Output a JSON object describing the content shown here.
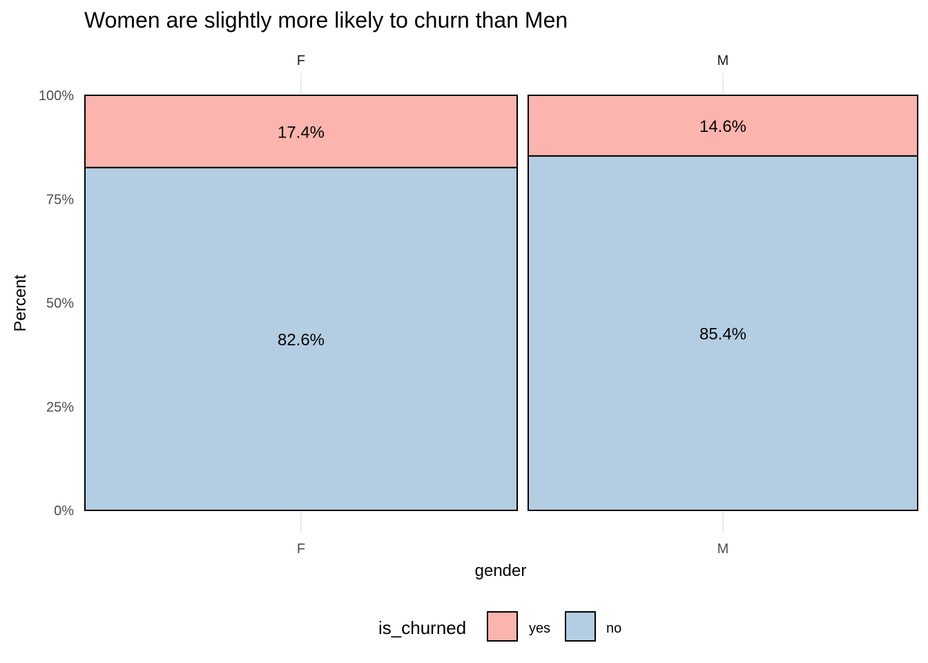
{
  "chart_data": {
    "type": "bar",
    "stacked": true,
    "position": "fill",
    "title": "Women are slightly more likely to churn than Men",
    "xlabel": "gender",
    "ylabel": "Percent",
    "facets": [
      "F",
      "M"
    ],
    "categories": [
      "F",
      "M"
    ],
    "series": [
      {
        "name": "yes",
        "values": [
          17.4,
          14.6
        ],
        "labels": [
          "17.4%",
          "14.6%"
        ],
        "color": "#FBB4AE"
      },
      {
        "name": "no",
        "values": [
          82.6,
          85.4
        ],
        "labels": [
          "82.6%",
          "85.4%"
        ],
        "color": "#B3CDE3"
      }
    ],
    "ylim": [
      0,
      100
    ],
    "yticks": [
      0,
      25,
      50,
      75,
      100
    ],
    "ytick_labels": [
      "0%",
      "25%",
      "50%",
      "75%",
      "100%"
    ],
    "grid": true,
    "legend": {
      "title": "is_churned",
      "placement": "bottom",
      "entries": [
        "yes",
        "no"
      ]
    }
  }
}
